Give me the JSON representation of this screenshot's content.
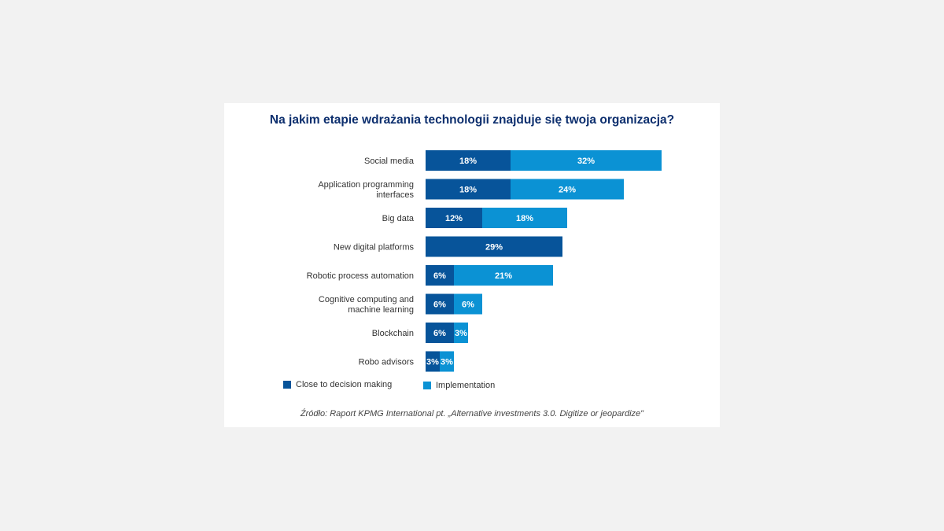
{
  "chart_data": {
    "type": "bar",
    "orientation": "horizontal",
    "stacked": true,
    "title": "Na jakim etapie wdrażania technologii znajduje się twoja organizacja?",
    "categories": [
      [
        "Social media"
      ],
      [
        "Application programming",
        "interfaces"
      ],
      [
        "Big data"
      ],
      [
        "New digital platforms"
      ],
      [
        "Robotic process automation"
      ],
      [
        "Cognitive computing and",
        "machine learning"
      ],
      [
        "Blockchain"
      ],
      [
        "Robo advisors"
      ]
    ],
    "series": [
      {
        "name": "Close to decision making",
        "color": "#07549a",
        "values": [
          18,
          18,
          12,
          29,
          6,
          6,
          6,
          3
        ]
      },
      {
        "name": "Implementation",
        "color": "#0b92d4",
        "values": [
          32,
          24,
          18,
          null,
          21,
          6,
          3,
          3
        ]
      }
    ],
    "value_suffix": "%",
    "xlim": [
      0,
      50
    ],
    "grid": false,
    "legend_position": "bottom-left"
  },
  "source_text": "Źródło: Raport KPMG International pt. „Alternative investments 3.0. Digitize or jeopardize\""
}
